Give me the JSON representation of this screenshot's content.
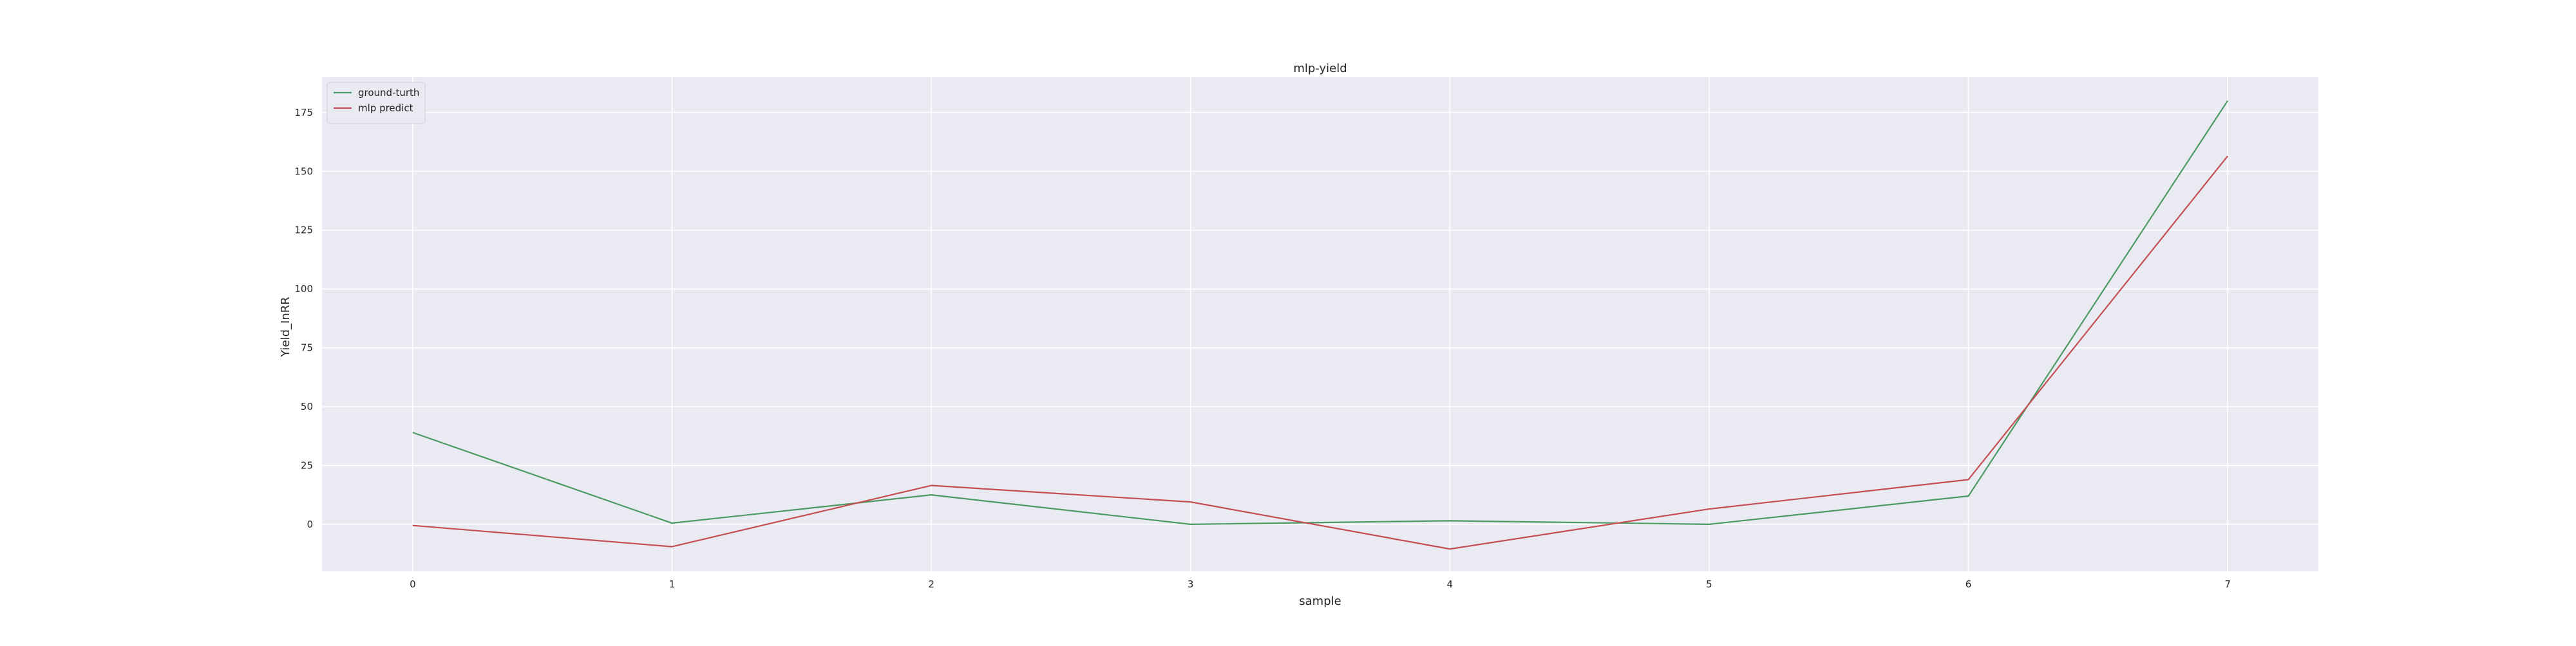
{
  "chart_data": {
    "type": "line",
    "title": "mlp-yield",
    "xlabel": "sample",
    "ylabel": "Yield_InRR",
    "x": [
      0,
      1,
      2,
      3,
      4,
      5,
      6,
      7
    ],
    "xlim": [
      -0.35,
      7.35
    ],
    "ylim": [
      -20,
      190
    ],
    "xticks": [
      0,
      1,
      2,
      3,
      4,
      5,
      6,
      7
    ],
    "yticks": [
      0,
      25,
      50,
      75,
      100,
      125,
      150,
      175
    ],
    "grid": true,
    "legend_position": "top-left",
    "background_color": "#eaeaf2",
    "grid_color": "#ffffff",
    "series": [
      {
        "name": "ground-turth",
        "color": "#4c9a63",
        "values": [
          39,
          0.5,
          12.5,
          0,
          1.5,
          0,
          12,
          180
        ]
      },
      {
        "name": "mlp predict",
        "color": "#c44e52",
        "values": [
          -0.5,
          -9.5,
          16.5,
          9.5,
          -10.5,
          6.5,
          19,
          156.5
        ]
      }
    ]
  }
}
